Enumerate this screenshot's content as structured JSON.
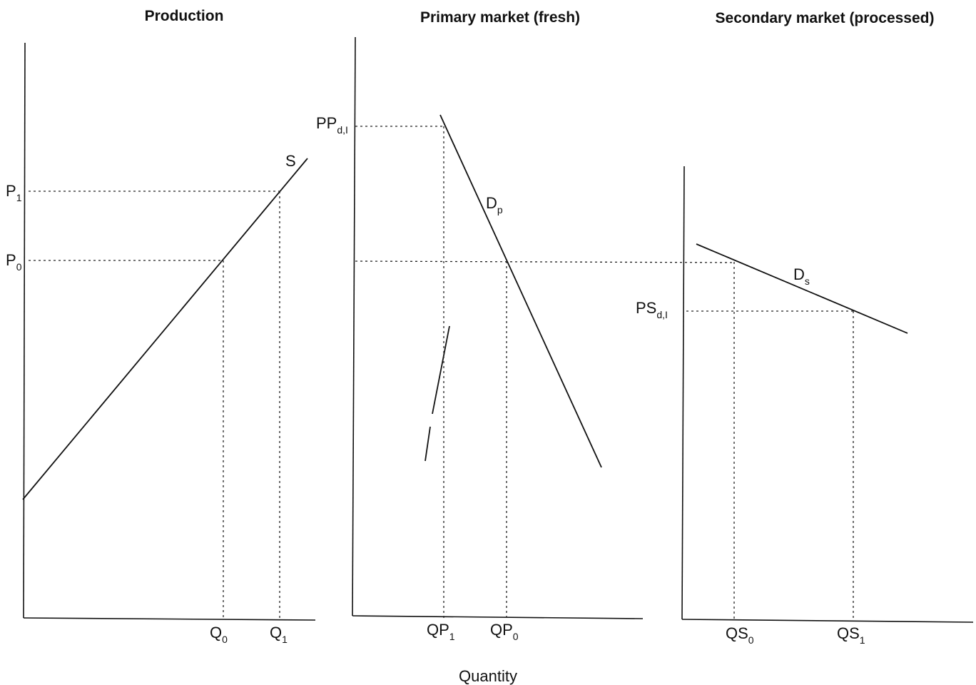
{
  "panels": {
    "production": {
      "title": "Production",
      "curve_label": "S",
      "price_labels": [
        {
          "main": "P",
          "sub": "1"
        },
        {
          "main": "P",
          "sub": "0"
        }
      ],
      "quantity_labels": [
        {
          "main": "Q",
          "sub": "0"
        },
        {
          "main": "Q",
          "sub": "1"
        }
      ]
    },
    "primary": {
      "title": "Primary market (fresh)",
      "curve_label": {
        "main": "D",
        "sub": "p"
      },
      "price_label": {
        "main": "PP",
        "sub": "d,I"
      },
      "quantity_labels": [
        {
          "main": "QP",
          "sub": "1"
        },
        {
          "main": "QP",
          "sub": "0"
        }
      ]
    },
    "secondary": {
      "title": "Secondary market (processed)",
      "curve_label": {
        "main": "D",
        "sub": "s"
      },
      "price_label": {
        "main": "PS",
        "sub": "d,I"
      },
      "quantity_labels": [
        {
          "main": "QS",
          "sub": "0"
        },
        {
          "main": "QS",
          "sub": "1"
        }
      ]
    }
  },
  "x_axis_label": "Quantity"
}
